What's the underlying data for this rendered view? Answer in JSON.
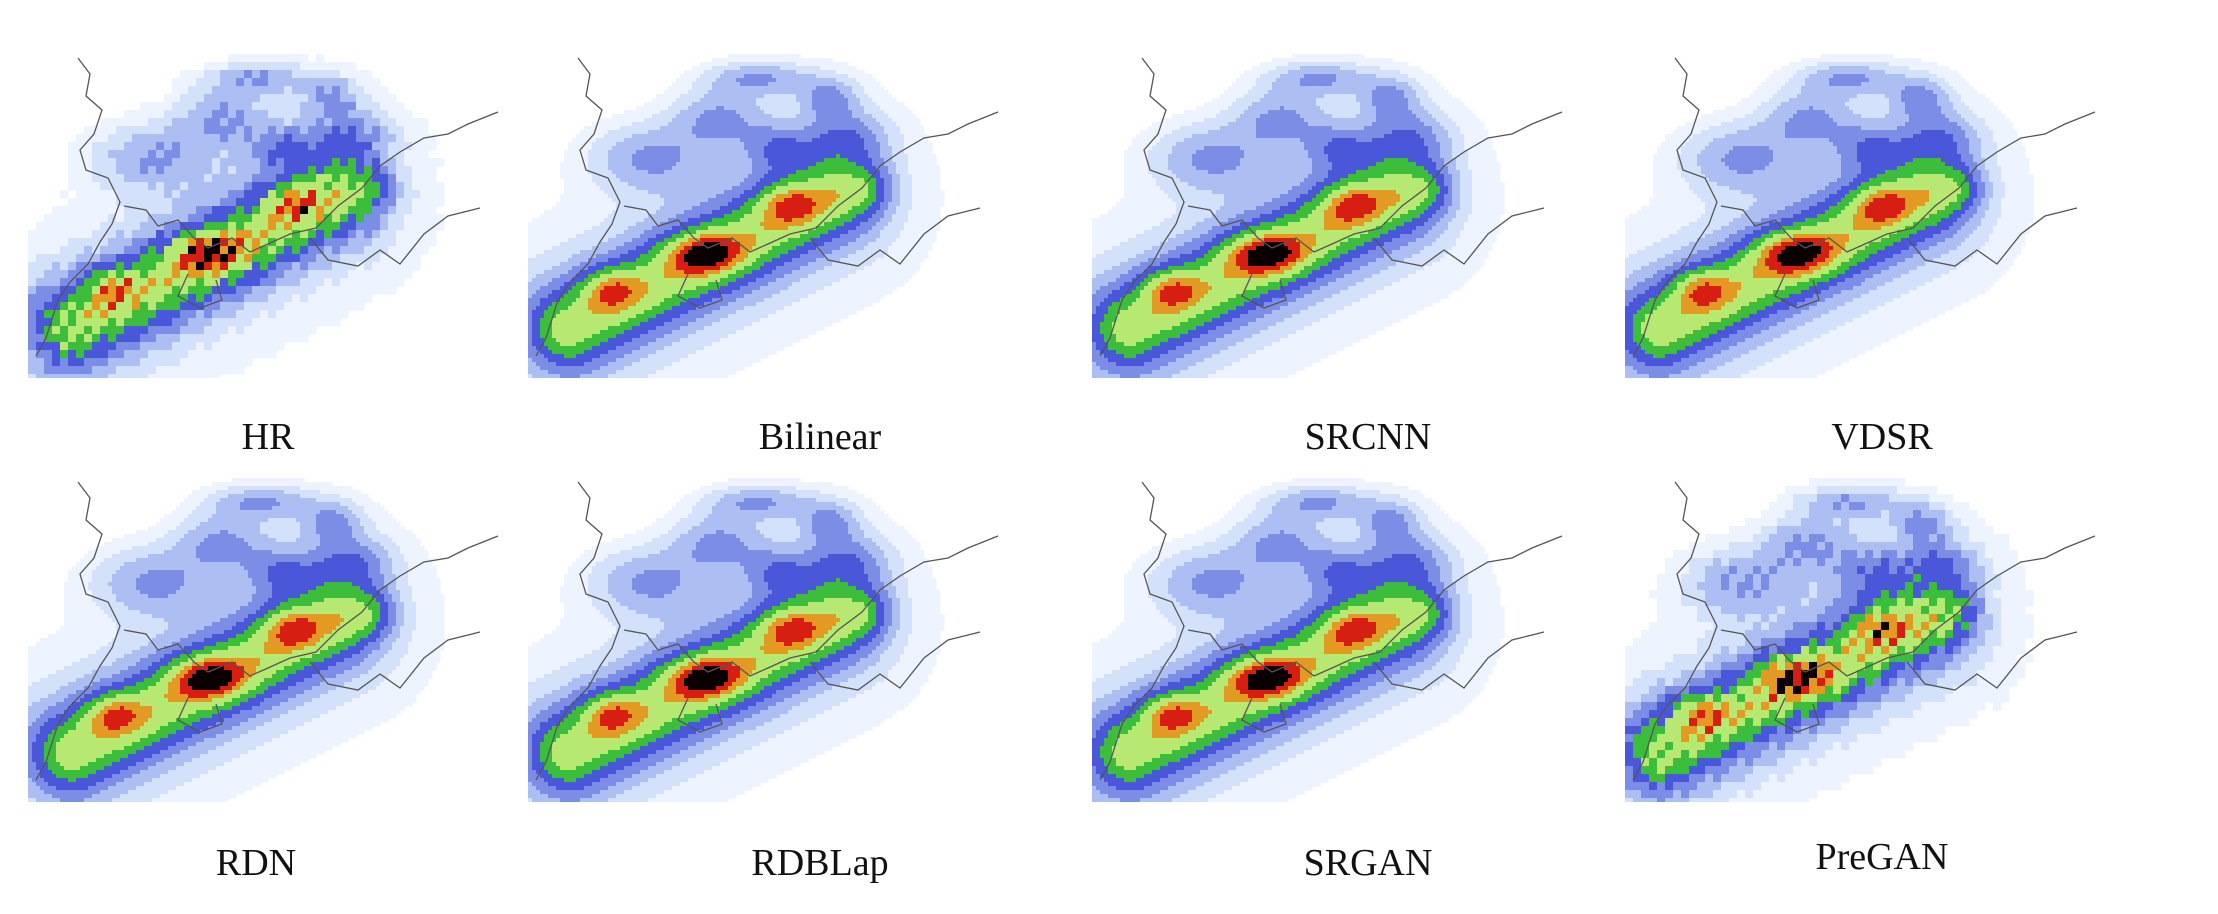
{
  "figure": {
    "panels": [
      {
        "id": "hr",
        "label": "HR",
        "variant": "blocky"
      },
      {
        "id": "bilinear",
        "label": "Bilinear",
        "variant": "smooth"
      },
      {
        "id": "srcnn",
        "label": "SRCNN",
        "variant": "smooth"
      },
      {
        "id": "vdsr",
        "label": "VDSR",
        "variant": "smooth"
      },
      {
        "id": "rdn",
        "label": "RDN",
        "variant": "smooth"
      },
      {
        "id": "rdblap",
        "label": "RDBLap",
        "variant": "smooth"
      },
      {
        "id": "srgan",
        "label": "SRGAN",
        "variant": "smooth"
      },
      {
        "id": "pregan",
        "label": "PreGAN",
        "variant": "blocky"
      }
    ],
    "colormap": [
      "#eef4ff",
      "#d4e1fb",
      "#adbff2",
      "#7c8de6",
      "#4a57d8",
      "#3cbd3c",
      "#b6e872",
      "#e29a22",
      "#d61e12",
      "#0a0000"
    ],
    "boundary_color": "#555555"
  }
}
